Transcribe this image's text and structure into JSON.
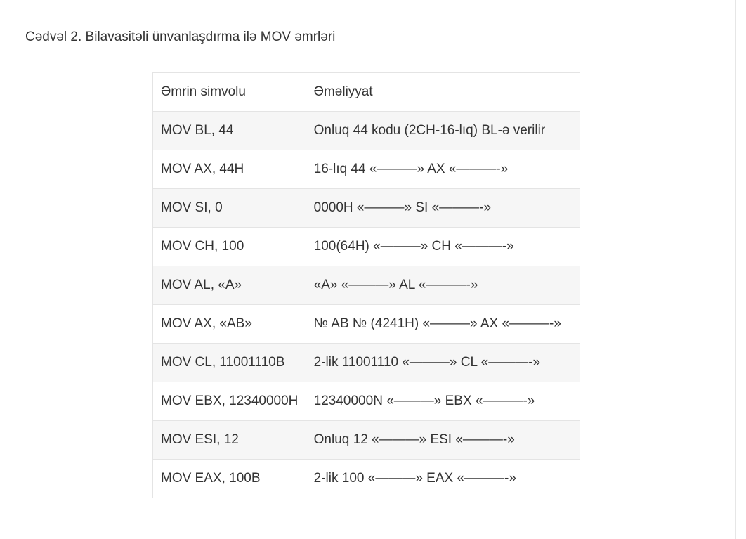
{
  "caption": "Cədvəl 2. Bilavasitəli ünvanlaşdırma ilə MOV əmrləri",
  "table": {
    "headers": [
      "Əmrin simvolu",
      "Əməliyyat"
    ],
    "rows": [
      [
        "MOV BL, 44",
        "Onluq 44 kodu (2CH-16-lıq) BL-ə verilir"
      ],
      [
        "MOV AX, 44H",
        "16-lıq 44 «———» AX «———-»"
      ],
      [
        "MOV SI, 0",
        "0000H «———» SI «———-»"
      ],
      [
        "MOV CH, 100",
        "100(64H) «———» CH «———-»"
      ],
      [
        "MOV AL, «A»",
        "«A» «———» AL «———-»"
      ],
      [
        "MOV AX, «AB»",
        "№ AB № (4241H) «———» AX «———-»"
      ],
      [
        "MOV CL, 11001110B",
        "2-lik 11001110 «———» CL «———-»"
      ],
      [
        "MOV EBX, 12340000H",
        "12340000N «———» EBX «———-»"
      ],
      [
        "MOV ESI, 12",
        "Onluq 12 «———» ESI «———-»"
      ],
      [
        "MOV EAX, 100B",
        "2-lik 100 «———» EAX «———-»"
      ]
    ]
  }
}
